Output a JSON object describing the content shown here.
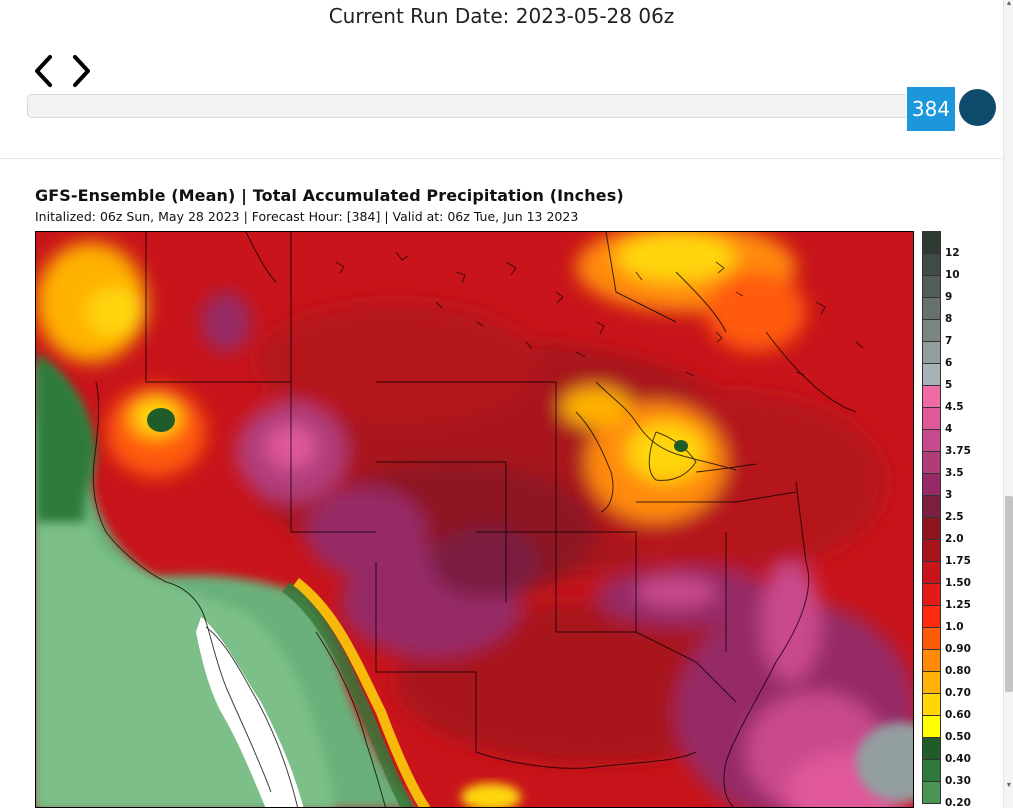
{
  "header": {
    "run_date": "Current Run Date: 2023-05-28 06z"
  },
  "slider": {
    "forecast_hour": "384",
    "handle_color": "#1d97dc",
    "play_color": "#0d4a6b"
  },
  "map": {
    "title": "GFS-Ensemble (Mean) | Total Accumulated Precipitation (Inches)",
    "subtitle": "Initalized: 06z Sun, May 28 2023  |  Forecast Hour: [384]  |  Valid at: 06z Tue, Jun 13 2023",
    "region": "Continental United States, southern Canada, northern Mexico"
  },
  "legend": {
    "bins": [
      {
        "label": "12",
        "color": "#2f3a33"
      },
      {
        "label": "10",
        "color": "#3f4b44"
      },
      {
        "label": "9",
        "color": "#525e57"
      },
      {
        "label": "8",
        "color": "#66716b"
      },
      {
        "label": "7",
        "color": "#7b8680"
      },
      {
        "label": "6",
        "color": "#939ea0"
      },
      {
        "label": "5",
        "color": "#a6b2b6"
      },
      {
        "label": "4.5",
        "color": "#f06aa3"
      },
      {
        "label": "4",
        "color": "#e0589a"
      },
      {
        "label": "3.75",
        "color": "#c94a8c"
      },
      {
        "label": "3.5",
        "color": "#b03c7a"
      },
      {
        "label": "3",
        "color": "#962a66"
      },
      {
        "label": "2.5",
        "color": "#7a1f3f"
      },
      {
        "label": "2.0",
        "color": "#8e1420"
      },
      {
        "label": "1.75",
        "color": "#a8141c"
      },
      {
        "label": "1.50",
        "color": "#c8141a"
      },
      {
        "label": "1.25",
        "color": "#e41a16"
      },
      {
        "label": "1.0",
        "color": "#ff2a10"
      },
      {
        "label": "0.90",
        "color": "#ff5a0a"
      },
      {
        "label": "0.80",
        "color": "#ff8a08"
      },
      {
        "label": "0.70",
        "color": "#ffb106"
      },
      {
        "label": "0.60",
        "color": "#ffd608"
      },
      {
        "label": "0.50",
        "color": "#ffff00"
      },
      {
        "label": "0.40",
        "color": "#1f5c2a"
      },
      {
        "label": "0.30",
        "color": "#2f7a3a"
      },
      {
        "label": "0.20",
        "color": "#4b9453"
      }
    ]
  }
}
